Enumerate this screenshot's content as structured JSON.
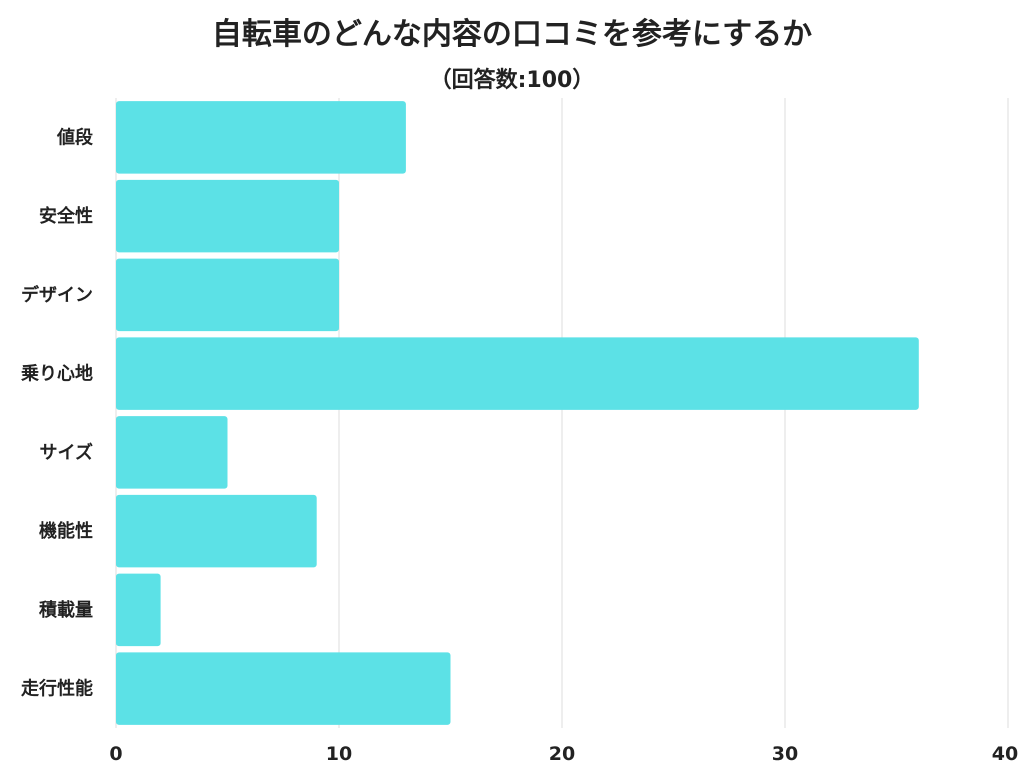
{
  "chart_data": {
    "type": "bar",
    "orientation": "horizontal",
    "title": "自転車のどんな内容の口コミを参考にするか",
    "subtitle": "（回答数:100）",
    "categories": [
      "値段",
      "安全性",
      "デザイン",
      "乗り心地",
      "サイズ",
      "機能性",
      "積載量",
      "走行性能"
    ],
    "values": [
      13,
      10,
      10,
      36,
      5,
      9,
      2,
      15
    ],
    "xlim": [
      0,
      40
    ],
    "xticks": [
      "0",
      "10",
      "20",
      "30",
      "40"
    ],
    "grid": true,
    "bar_color": "#5ce1e6"
  }
}
